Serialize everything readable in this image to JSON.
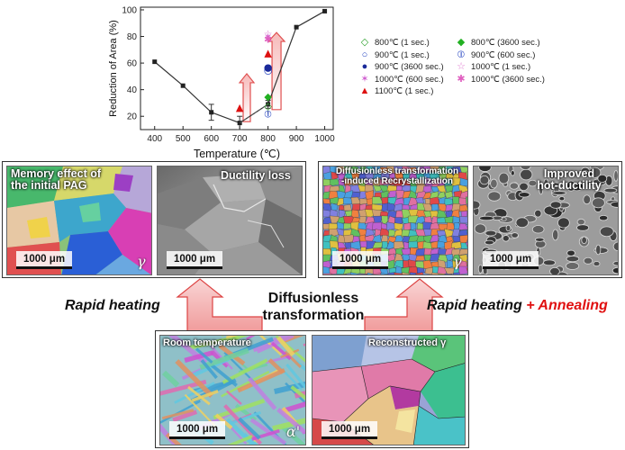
{
  "chart_data": {
    "type": "line",
    "xlabel": "Temperature (℃)",
    "ylabel": "Reduction of Area (%)",
    "xlim": [
      350,
      1030
    ],
    "ylim": [
      10,
      102
    ],
    "xticks": [
      400,
      500,
      600,
      700,
      800,
      900,
      1000
    ],
    "yticks": [
      20,
      40,
      60,
      80,
      100
    ],
    "main_series": {
      "x": [
        400,
        500,
        600,
        700,
        800,
        900,
        1000
      ],
      "y": [
        61,
        43,
        23,
        15,
        29,
        87,
        99
      ],
      "err": [
        0,
        0,
        6,
        5,
        3,
        0,
        0
      ]
    },
    "secondary_line": {
      "x": [
        700,
        800,
        800
      ],
      "y": [
        15,
        29,
        22
      ]
    },
    "points": [
      {
        "series": "800℃ (1 sec.)",
        "x": 800,
        "y": 28
      },
      {
        "series": "800℃ (3600 sec.)",
        "x": 800,
        "y": 35
      },
      {
        "series": "900℃ (1 sec.)",
        "x": 800,
        "y": 55
      },
      {
        "series": "900℃ (600 sec.)",
        "x": 800,
        "y": 22
      },
      {
        "series": "900℃ (3600 sec.)",
        "x": 800,
        "y": 57
      },
      {
        "series": "1000℃ (1 sec.)",
        "x": 800,
        "y": 82
      },
      {
        "series": "1000℃ (600 sec.)",
        "x": 800,
        "y": 80
      },
      {
        "series": "1000℃ (3600 sec.)",
        "x": 800,
        "y": 78
      },
      {
        "series": "1100℃ (1 sec.)",
        "x": 700,
        "y": 27
      },
      {
        "series": "1100℃ (1 sec.)",
        "x": 800,
        "y": 68
      }
    ],
    "legend": [
      {
        "label": "800℃ (1 sec.)",
        "symbol": "◇",
        "color": "#2ca02c"
      },
      {
        "label": "800℃ (3600 sec.)",
        "symbol": "◆",
        "color": "#22b022"
      },
      {
        "label": "900℃ (1 sec.)",
        "symbol": "○",
        "color": "#1f3fbf"
      },
      {
        "label": "900℃ (600 sec.)",
        "symbol": "⦶",
        "color": "#1f3fbf"
      },
      {
        "label": "900℃ (3600 sec.)",
        "symbol": "●",
        "color": "#1a2a9a"
      },
      {
        "label": "1000℃ (1 sec.)",
        "symbol": "☆",
        "color": "#e07ad0"
      },
      {
        "label": "1000℃ (600 sec.)",
        "symbol": "✶",
        "color": "#d060d0"
      },
      {
        "label": "1000℃ (3600 sec.)",
        "symbol": "✱",
        "color": "#e060c0"
      },
      {
        "label": "1100℃ (1 sec.)",
        "symbol": "▲",
        "color": "#dd1111"
      }
    ],
    "legend_placement": "right"
  },
  "panels": {
    "memory": {
      "title": "Memory effect of\nthe initial PAG",
      "scale": "1000 μm",
      "phase": "γ"
    },
    "ductility_loss": {
      "title": "Ductility loss",
      "scale": "1000 μm"
    },
    "recrystallization": {
      "title": "Diffusionless transformation\n-induced Recrystallization",
      "scale": "1000 μm",
      "phase": "γ"
    },
    "improved": {
      "title": "Improved\nhot-ductility",
      "scale": "1000 μm"
    },
    "room_temp": {
      "title": "Room temperature",
      "scale": "1000 μm",
      "phase": "α'"
    },
    "reconstructed": {
      "title": "Reconstructed γ",
      "scale": "1000 μm"
    }
  },
  "labels": {
    "rapid_heating": "Rapid heating",
    "rapid_heating_annealing_prefix": "Rapid heating",
    "rapid_heating_annealing_suffix": "+ Annealing",
    "center": "Diffusionless\ntransformation"
  },
  "colors": {
    "annealing_red": "#e01010",
    "arrow_fill": "#f7c8c8",
    "arrow_stroke": "#dd4444"
  }
}
